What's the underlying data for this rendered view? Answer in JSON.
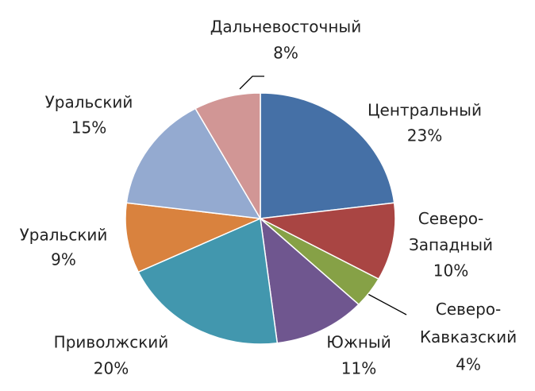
{
  "chart_data": {
    "type": "pie",
    "categories": [
      "Центральный",
      "Северо-Западный",
      "Северо-Кавказский",
      "Южный",
      "Приволжский",
      "Уральский",
      "Уральский",
      "Дальневосточный"
    ],
    "values": [
      23,
      10,
      4,
      11,
      20,
      9,
      15,
      8
    ],
    "value_labels": [
      "23%",
      "10%",
      "4%",
      "11%",
      "20%",
      "9%",
      "15%",
      "8%"
    ],
    "colors": [
      "#4570a6",
      "#a94543",
      "#86a146",
      "#6f568f",
      "#4297ae",
      "#d9823e",
      "#94aad0",
      "#d19695"
    ]
  }
}
